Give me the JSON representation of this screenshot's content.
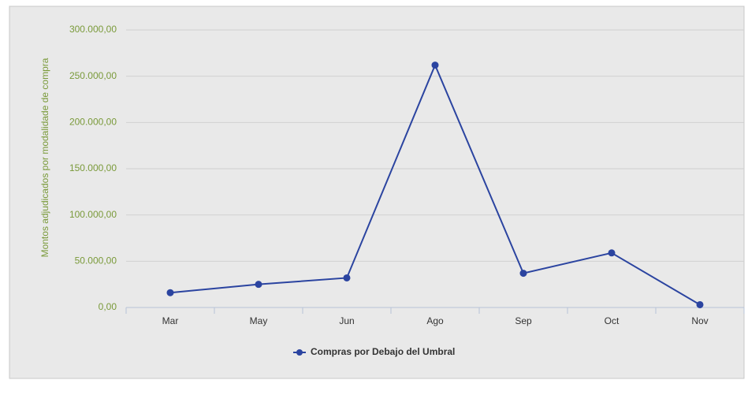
{
  "chart_data": {
    "type": "line",
    "y_label": "Montos adjudicados por modalidade de compra",
    "categories": [
      "Mar",
      "May",
      "Jun",
      "Ago",
      "Sep",
      "Oct",
      "Nov"
    ],
    "series": [
      {
        "name": "Compras por Debajo del Umbral",
        "color": "#2b44a0",
        "values": [
          16000,
          25000,
          32000,
          262000,
          37000,
          59000,
          3000
        ]
      }
    ],
    "ylim": [
      0,
      300000
    ],
    "yticks": [
      {
        "value": 0,
        "label": "0,00"
      },
      {
        "value": 50000,
        "label": "50.000,00"
      },
      {
        "value": 100000,
        "label": "100.000,00"
      },
      {
        "value": 150000,
        "label": "150.000,00"
      },
      {
        "value": 200000,
        "label": "200.000,00"
      },
      {
        "value": 250000,
        "label": "250.000,00"
      },
      {
        "value": 300000,
        "label": "300.000,00"
      }
    ],
    "grid": true,
    "legend": "bottom"
  }
}
